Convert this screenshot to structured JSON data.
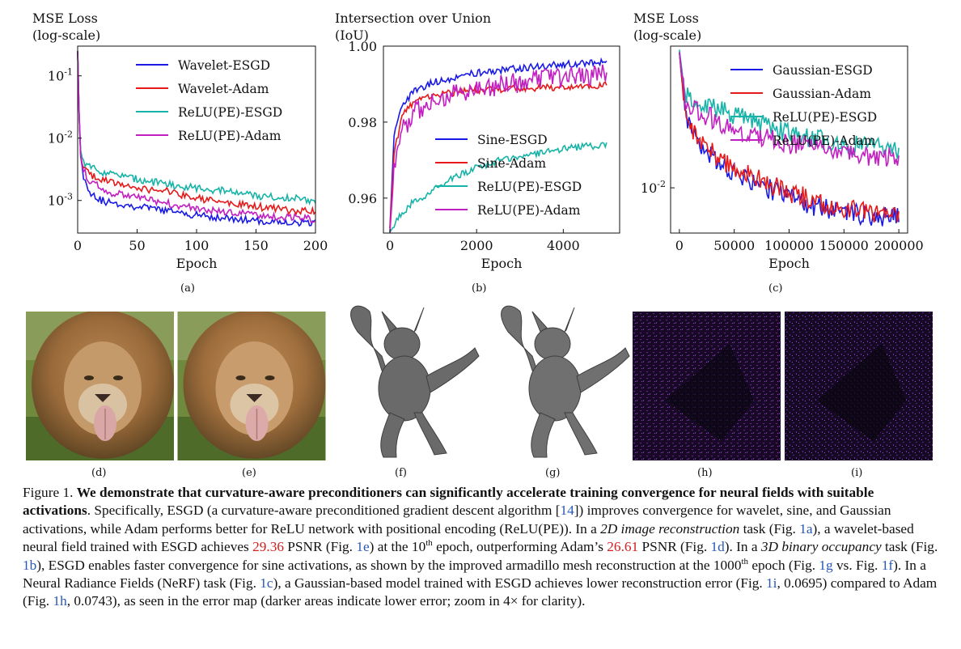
{
  "chart_data": [
    {
      "type": "line",
      "ylabel_lines": [
        "MSE Loss",
        "(log-scale)"
      ],
      "xlabel": "Epoch",
      "xlim": [
        0,
        200
      ],
      "ylim": [
        0.0003,
        0.3
      ],
      "yscale": "log",
      "xticks": [
        0,
        50,
        100,
        150,
        200
      ],
      "yticks": [
        0.1,
        0.01,
        0.001
      ],
      "ytick_labels": [
        "10-1",
        "10-2",
        "10-3"
      ],
      "legend_position": "top-right",
      "series": [
        {
          "name": "Wavelet-ESGD",
          "color": "#1a1ae6",
          "points": [
            [
              0,
              0.25
            ],
            [
              2,
              0.006
            ],
            [
              5,
              0.0024
            ],
            [
              10,
              0.0014
            ],
            [
              20,
              0.001
            ],
            [
              30,
              0.0009
            ],
            [
              50,
              0.0008
            ],
            [
              75,
              0.00068
            ],
            [
              100,
              0.00058
            ],
            [
              125,
              0.00052
            ],
            [
              150,
              0.00047
            ],
            [
              175,
              0.00045
            ],
            [
              200,
              0.00043
            ]
          ]
        },
        {
          "name": "Wavelet-Adam",
          "color": "#e61a1a",
          "points": [
            [
              0,
              0.25
            ],
            [
              2,
              0.006
            ],
            [
              5,
              0.0035
            ],
            [
              10,
              0.0025
            ],
            [
              20,
              0.0022
            ],
            [
              30,
              0.0019
            ],
            [
              50,
              0.0016
            ],
            [
              75,
              0.0014
            ],
            [
              100,
              0.0011
            ],
            [
              125,
              0.0009
            ],
            [
              150,
              0.0008
            ],
            [
              175,
              0.0007
            ],
            [
              200,
              0.00065
            ]
          ]
        },
        {
          "name": "ReLU(PE)-ESGD",
          "color": "#18b3a8",
          "points": [
            [
              0,
              0.25
            ],
            [
              2,
              0.007
            ],
            [
              5,
              0.0042
            ],
            [
              10,
              0.0035
            ],
            [
              20,
              0.0029
            ],
            [
              30,
              0.0026
            ],
            [
              50,
              0.0022
            ],
            [
              75,
              0.0018
            ],
            [
              100,
              0.0016
            ],
            [
              125,
              0.0014
            ],
            [
              150,
              0.0012
            ],
            [
              175,
              0.0011
            ],
            [
              200,
              0.001
            ]
          ]
        },
        {
          "name": "ReLU(PE)-Adam",
          "color": "#c21fc2",
          "points": [
            [
              0,
              0.25
            ],
            [
              2,
              0.006
            ],
            [
              5,
              0.003
            ],
            [
              10,
              0.0021
            ],
            [
              20,
              0.0016
            ],
            [
              30,
              0.0013
            ],
            [
              50,
              0.0011
            ],
            [
              75,
              0.0009
            ],
            [
              100,
              0.00075
            ],
            [
              125,
              0.00065
            ],
            [
              150,
              0.00058
            ],
            [
              175,
              0.00054
            ],
            [
              200,
              0.0005
            ]
          ]
        }
      ]
    },
    {
      "type": "line",
      "ylabel_lines": [
        "Intersection over Union",
        "(IoU)"
      ],
      "xlabel": "Epoch",
      "xlim": [
        -150,
        5300
      ],
      "ylim": [
        0.9508,
        1.0
      ],
      "yscale": "linear",
      "xticks": [
        0,
        2000,
        4000
      ],
      "yticks": [
        0.96,
        0.98,
        1.0
      ],
      "ytick_labels": [
        "0.96",
        "0.98",
        "1.00"
      ],
      "legend_position": "center-right",
      "series": [
        {
          "name": "Sine-ESGD",
          "color": "#1a1ae6",
          "points": [
            [
              0,
              0.952
            ],
            [
              100,
              0.978
            ],
            [
              300,
              0.985
            ],
            [
              600,
              0.9885
            ],
            [
              1000,
              0.9905
            ],
            [
              2000,
              0.993
            ],
            [
              3000,
              0.9942
            ],
            [
              4000,
              0.9952
            ],
            [
              5000,
              0.9958
            ]
          ]
        },
        {
          "name": "Sine-Adam",
          "color": "#e61a1a",
          "points": [
            [
              0,
              0.952
            ],
            [
              100,
              0.972
            ],
            [
              300,
              0.982
            ],
            [
              600,
              0.986
            ],
            [
              1000,
              0.987
            ],
            [
              2000,
              0.9885
            ],
            [
              3000,
              0.9888
            ],
            [
              4000,
              0.9892
            ],
            [
              5000,
              0.9898
            ]
          ]
        },
        {
          "name": "ReLU(PE)-ESGD",
          "color": "#18b3a8",
          "points": [
            [
              0,
              0.951
            ],
            [
              200,
              0.9548
            ],
            [
              500,
              0.9585
            ],
            [
              1000,
              0.962
            ],
            [
              1500,
              0.9655
            ],
            [
              2000,
              0.968
            ],
            [
              2500,
              0.9698
            ],
            [
              3000,
              0.971
            ],
            [
              3500,
              0.972
            ],
            [
              4000,
              0.973
            ],
            [
              4500,
              0.9736
            ],
            [
              5000,
              0.974
            ]
          ]
        },
        {
          "name": "ReLU(PE)-Adam",
          "color": "#c21fc2",
          "points": [
            [
              0,
              0.951
            ],
            [
              100,
              0.968
            ],
            [
              300,
              0.978
            ],
            [
              600,
              0.983
            ],
            [
              1000,
              0.986
            ],
            [
              2000,
              0.9885
            ],
            [
              3000,
              0.9905
            ],
            [
              4000,
              0.9918
            ],
            [
              5000,
              0.9925
            ]
          ]
        }
      ]
    },
    {
      "type": "line",
      "ylabel_lines": [
        "MSE Loss",
        "(log-scale)"
      ],
      "xlabel": "Epoch",
      "xlim": [
        -8000,
        208000
      ],
      "ylim": [
        0.0055,
        0.065
      ],
      "yscale": "log",
      "xticks": [
        0,
        50000,
        100000,
        150000,
        200000
      ],
      "yticks": [
        0.01
      ],
      "ytick_labels": [
        "10-2"
      ],
      "legend_position": "top-right",
      "series": [
        {
          "name": "Gaussian-ESGD",
          "color": "#1a1ae6",
          "points": [
            [
              0,
              0.06
            ],
            [
              5000,
              0.027
            ],
            [
              15000,
              0.019
            ],
            [
              30000,
              0.015
            ],
            [
              50000,
              0.0125
            ],
            [
              75000,
              0.0103
            ],
            [
              100000,
              0.0088
            ],
            [
              125000,
              0.0078
            ],
            [
              150000,
              0.0072
            ],
            [
              175000,
              0.0069
            ],
            [
              200000,
              0.0068
            ]
          ]
        },
        {
          "name": "Gaussian-Adam",
          "color": "#e61a1a",
          "points": [
            [
              0,
              0.06
            ],
            [
              5000,
              0.028
            ],
            [
              15000,
              0.02
            ],
            [
              30000,
              0.0158
            ],
            [
              50000,
              0.013
            ],
            [
              75000,
              0.011
            ],
            [
              100000,
              0.0095
            ],
            [
              125000,
              0.0083
            ],
            [
              150000,
              0.0076
            ],
            [
              175000,
              0.0072
            ],
            [
              200000,
              0.007
            ]
          ]
        },
        {
          "name": "ReLU(PE)-ESGD",
          "color": "#18b3a8",
          "points": [
            [
              0,
              0.062
            ],
            [
              5000,
              0.035
            ],
            [
              15000,
              0.031
            ],
            [
              30000,
              0.029
            ],
            [
              50000,
              0.026
            ],
            [
              75000,
              0.023
            ],
            [
              100000,
              0.0205
            ],
            [
              125000,
              0.019
            ],
            [
              150000,
              0.018
            ],
            [
              175000,
              0.017
            ],
            [
              200000,
              0.0165
            ]
          ]
        },
        {
          "name": "ReLU(PE)-Adam",
          "color": "#c21fc2",
          "points": [
            [
              0,
              0.06
            ],
            [
              5000,
              0.032
            ],
            [
              15000,
              0.028
            ],
            [
              30000,
              0.025
            ],
            [
              50000,
              0.022
            ],
            [
              75000,
              0.0195
            ],
            [
              100000,
              0.0178
            ],
            [
              125000,
              0.0166
            ],
            [
              150000,
              0.0158
            ],
            [
              175000,
              0.0152
            ],
            [
              200000,
              0.015
            ]
          ]
        }
      ]
    }
  ],
  "subcaptions": {
    "a": "(a)",
    "b": "(b)",
    "c": "(c)",
    "d": "(d)",
    "e": "(e)",
    "f": "(f)",
    "g": "(g)",
    "h": "(h)",
    "i": "(i)"
  },
  "caption": {
    "s1": "Figure 1. ",
    "s2": "We demonstrate that curvature-aware preconditioners can significantly accelerate training convergence for neural fields with suitable activations",
    "s3": ". Specifically, ESGD (a curvature-aware preconditioned gradient descent algorithm [",
    "s4": "14",
    "s5": "]) improves convergence for wavelet, sine, and Gaussian activations, while Adam performs better for ReLU network with positional encoding (ReLU(PE)). In a ",
    "s6": "2D image reconstruction",
    "s7": " task (Fig. ",
    "s8": "1a",
    "s9": "), a wavelet-based neural field trained with ESGD achieves ",
    "s10": "29.36",
    "s11": " PSNR (Fig. ",
    "s12": "1e",
    "s13": ") at the 10",
    "s14": "th",
    "s15": " epoch, outperforming Adam’s ",
    "s16": "26.61",
    "s17": " PSNR (Fig. ",
    "s18": "1d",
    "s19": "). In a ",
    "s20": "3D binary occupancy",
    "s21": " task (Fig. ",
    "s22": "1b",
    "s23": "), ESGD enables faster convergence for sine activations, as shown by the improved armadillo mesh reconstruction at the 1000",
    "s24": "th",
    "s25": " epoch (Fig. ",
    "s26": "1g",
    "s27": " vs. Fig. ",
    "s28": "1f",
    "s29": "). In a Neural Radiance Fields (NeRF) task (Fig. ",
    "s30": "1c",
    "s31": "), a Gaussian-based model trained with ESGD achieves lower reconstruction error (Fig. ",
    "s32": "1i",
    "s33": ", 0.0695) compared to Adam (Fig. ",
    "s34": "1h",
    "s35": ", 0.0743), as seen in the error map (darker areas indicate lower error; zoom in 4× for clarity)."
  }
}
